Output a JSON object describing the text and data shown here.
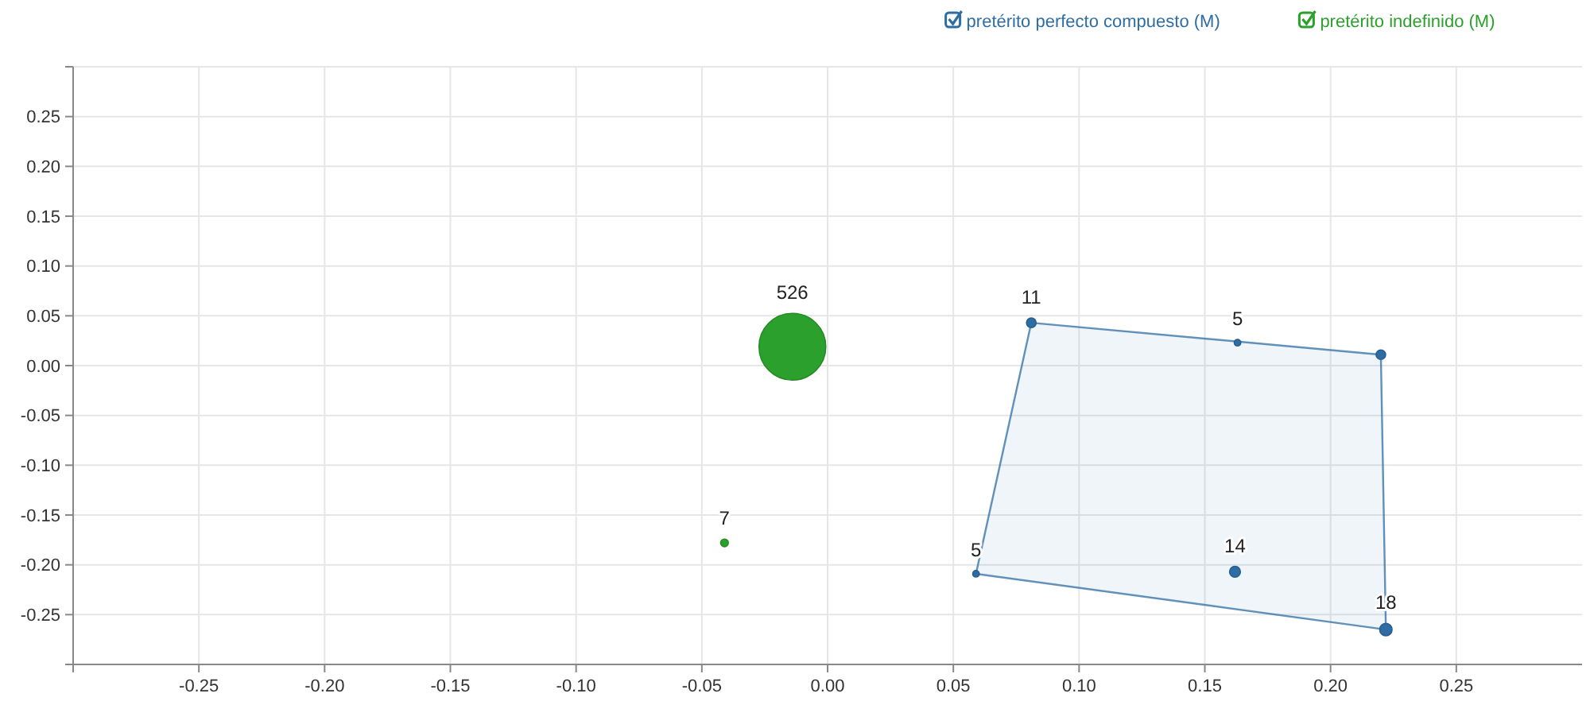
{
  "chart_data": {
    "type": "bubble",
    "legend": "top right",
    "grid": true,
    "xlim": [
      -0.3,
      0.3
    ],
    "xticks": [
      {
        "value": -0.3,
        "label": null
      },
      {
        "value": -0.25,
        "label": "-0.25"
      },
      {
        "value": -0.2,
        "label": "-0.20"
      },
      {
        "value": -0.15,
        "label": "-0.15"
      },
      {
        "value": -0.1,
        "label": "-0.10"
      },
      {
        "value": -0.05,
        "label": "-0.05"
      },
      {
        "value": 0,
        "label": "0.00"
      },
      {
        "value": 0.05,
        "label": "0.05"
      },
      {
        "value": 0.1,
        "label": "0.10"
      },
      {
        "value": 0.15,
        "label": "0.15"
      },
      {
        "value": 0.2,
        "label": "0.20"
      },
      {
        "value": 0.25,
        "label": "0.25"
      }
    ],
    "ylim": [
      -0.3,
      0.3
    ],
    "yticks": [
      {
        "value": -0.3,
        "label": null
      },
      {
        "value": -0.25,
        "label": "-0.25"
      },
      {
        "value": -0.2,
        "label": "-0.20"
      },
      {
        "value": -0.15,
        "label": "-0.15"
      },
      {
        "value": -0.1,
        "label": "-0.10"
      },
      {
        "value": -0.05,
        "label": "-0.05"
      },
      {
        "value": 0,
        "label": "0.00"
      },
      {
        "value": 0.05,
        "label": "0.05"
      },
      {
        "value": 0.1,
        "label": "0.10"
      },
      {
        "value": 0.15,
        "label": "0.15"
      },
      {
        "value": 0.2,
        "label": "0.20"
      },
      {
        "value": 0.25,
        "label": "0.25"
      },
      {
        "value": 0.3,
        "label": null
      }
    ],
    "series": [
      {
        "name": "pretérito perfecto compuesto (M)",
        "color": "#2e6da4",
        "x": [
          0.081,
          0.163,
          0.22,
          0.059,
          0.162,
          0.222
        ],
        "values": [
          0.043,
          0.023,
          0.011,
          -0.209,
          -0.207,
          -0.265
        ],
        "sizes": [
          11,
          5,
          null,
          5,
          14,
          18
        ],
        "value_labels": [
          "11",
          "5",
          null,
          "5",
          "14",
          "18"
        ]
      },
      {
        "type": "area",
        "color": "#2e6da4",
        "x": [
          0.059,
          0.081,
          0.22,
          0.222,
          0.059
        ],
        "values": [
          -0.209,
          0.043,
          0.011,
          -0.265,
          -0.209
        ]
      },
      {
        "name": "pretérito indefinido (M)",
        "color": "#2ca02c",
        "x": [
          -0.014,
          -0.041
        ],
        "values": [
          0.019,
          -0.178
        ],
        "sizes": [
          526,
          7
        ],
        "value_labels": [
          "526",
          "7"
        ]
      }
    ]
  }
}
